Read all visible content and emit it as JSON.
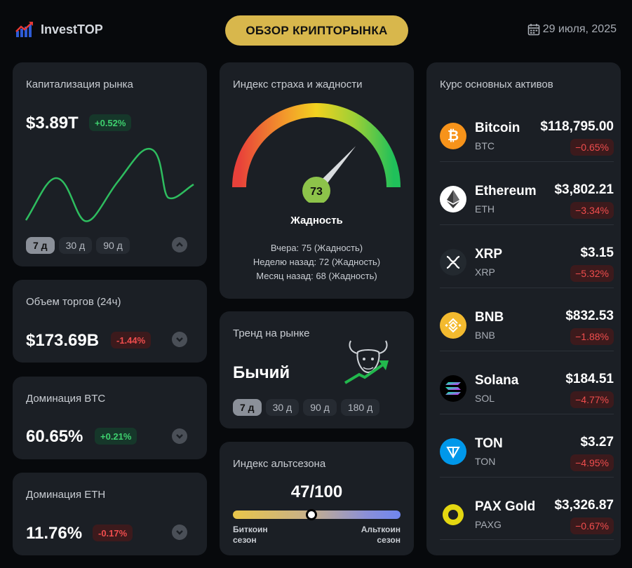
{
  "header": {
    "logo_text": "InvestTOP",
    "title": "ОБЗОР КРИПТОРЫНКА",
    "date": "29 июля, 2025"
  },
  "market_cap": {
    "title": "Капитализация рынка",
    "value": "$3.89T",
    "change": "+0.52%",
    "periods": [
      "7 д",
      "30 д",
      "90 д"
    ],
    "active_period": "7 д"
  },
  "volume": {
    "title": "Объем торгов (24ч)",
    "value": "$173.69B",
    "change": "-1.44%"
  },
  "btc_dom": {
    "title": "Доминация BTC",
    "value": "60.65%",
    "change": "+0.21%"
  },
  "eth_dom": {
    "title": "Доминация ETH",
    "value": "11.76%",
    "change": "-0.17%"
  },
  "fear_greed": {
    "title": "Индекс страха и жадности",
    "value": 73,
    "label": "Жадность",
    "history": [
      "Вчера: 75 (Жадность)",
      "Неделю назад: 72 (Жадность)",
      "Месяц назад: 68 (Жадность)"
    ]
  },
  "trend": {
    "title": "Тренд на рынке",
    "value": "Бычий",
    "periods": [
      "7 д",
      "30 д",
      "90 д",
      "180 д"
    ],
    "active_period": "7 д"
  },
  "altseason": {
    "title": "Индекс альтсезона",
    "value": "47/100",
    "score": 47,
    "left_label_1": "Биткоин",
    "left_label_2": "сезон",
    "right_label_1": "Альткоин",
    "right_label_2": "сезон"
  },
  "assets": {
    "title": "Курс основных активов",
    "items": [
      {
        "name": "Bitcoin",
        "symbol": "BTC",
        "price": "$118,795.00",
        "change": "−0.65%",
        "icon": "bitcoin-icon",
        "color": "#f7931a"
      },
      {
        "name": "Ethereum",
        "symbol": "ETH",
        "price": "$3,802.21",
        "change": "−3.34%",
        "icon": "ethereum-icon",
        "color": "#ffffff"
      },
      {
        "name": "XRP",
        "symbol": "XRP",
        "price": "$3.15",
        "change": "−5.32%",
        "icon": "xrp-icon",
        "color": "#23292f"
      },
      {
        "name": "BNB",
        "symbol": "BNB",
        "price": "$832.53",
        "change": "−1.88%",
        "icon": "bnb-icon",
        "color": "#f3ba2f"
      },
      {
        "name": "Solana",
        "symbol": "SOL",
        "price": "$184.51",
        "change": "−4.77%",
        "icon": "solana-icon",
        "color": "#000000"
      },
      {
        "name": "TON",
        "symbol": "TON",
        "price": "$3.27",
        "change": "−4.95%",
        "icon": "ton-icon",
        "color": "#0098ea"
      },
      {
        "name": "PAX Gold",
        "symbol": "PAXG",
        "price": "$3,326.87",
        "change": "−0.67%",
        "icon": "paxgold-icon",
        "color": "#e4d711"
      }
    ]
  }
}
